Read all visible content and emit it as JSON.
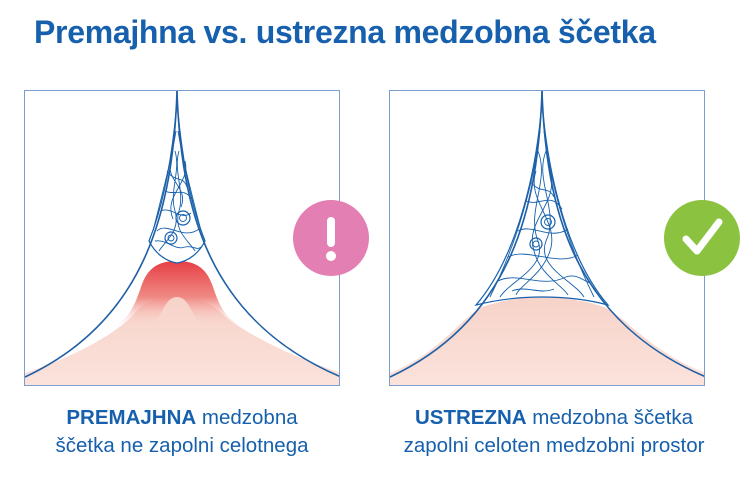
{
  "title": "Premajhna vs. ustrezna medzobna ščetka",
  "panels": {
    "left": {
      "caption_bold": "PREMAJHNA",
      "caption_line1_rest": " medzobna",
      "caption_line2": "ščetka ne zapolni celotnega",
      "badge_icon": "exclamation-icon"
    },
    "right": {
      "caption_bold": "USTREZNA",
      "caption_line1_rest": " medzobna ščetka",
      "caption_line2": "zapolni celoten medzobni prostor",
      "badge_icon": "checkmark-icon"
    }
  },
  "colors": {
    "brand_blue": "#1660ad",
    "warning_pink": "#e37fb2",
    "ok_green": "#8bc23f",
    "gum_pink": "#f9dcd3",
    "inflamed_red": "#e8484c"
  }
}
